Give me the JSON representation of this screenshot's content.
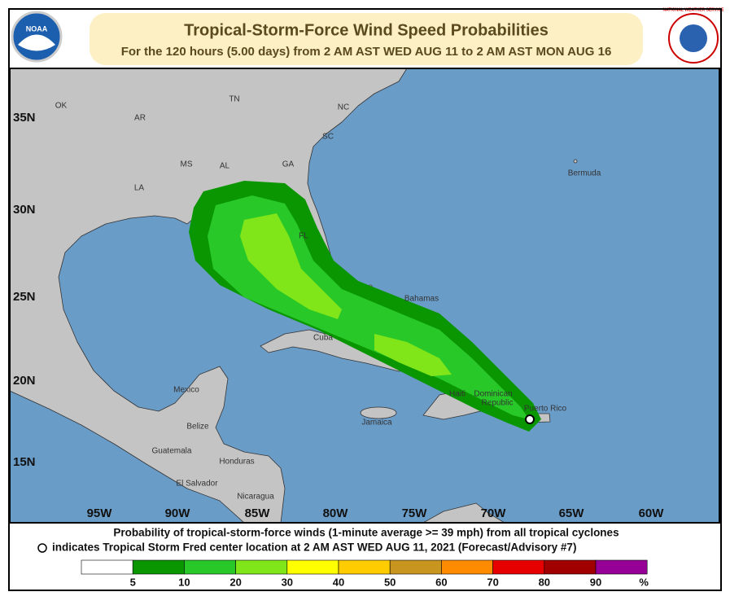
{
  "header": {
    "title": "Tropical-Storm-Force Wind Speed Probabilities",
    "subtitle": "For the 120 hours (5.00 days) from 2 AM AST WED AUG 11 to 2 AM AST MON AUG 16",
    "left_logo": "NOAA",
    "right_logo": "NATIONAL WEATHER SERVICE"
  },
  "map": {
    "latitudes": [
      "35N",
      "30N",
      "25N",
      "20N",
      "15N"
    ],
    "longitudes": [
      "95W",
      "90W",
      "85W",
      "80W",
      "75W",
      "70W",
      "65W",
      "60W"
    ],
    "places": [
      "OK",
      "AR",
      "TN",
      "NC",
      "SC",
      "MS",
      "AL",
      "GA",
      "LA",
      "FL",
      "Bermuda",
      "Bahamas",
      "Cuba",
      "Mexico",
      "Belize",
      "Guatemala",
      "Honduras",
      "El Salvador",
      "Nicaragua",
      "Jamaica",
      "Haiti",
      "Dominican",
      "Republic",
      "Puerto Rico"
    ]
  },
  "footer": {
    "line1": "Probability of tropical-storm-force winds (1-minute average >= 39 mph) from all tropical cyclones",
    "line2": "indicates Tropical Storm Fred center location at 2 AM AST WED AUG 11, 2021 (Forecast/Advisory #7)"
  },
  "legend": {
    "labels": [
      5,
      10,
      20,
      30,
      40,
      50,
      60,
      70,
      80,
      90
    ],
    "unit": "%",
    "colors": [
      "#ffffff",
      "#0a9600",
      "#28c828",
      "#80e61a",
      "#ffff00",
      "#ffcc00",
      "#c8961e",
      "#ff8c00",
      "#e60000",
      "#a00000",
      "#960096"
    ]
  }
}
